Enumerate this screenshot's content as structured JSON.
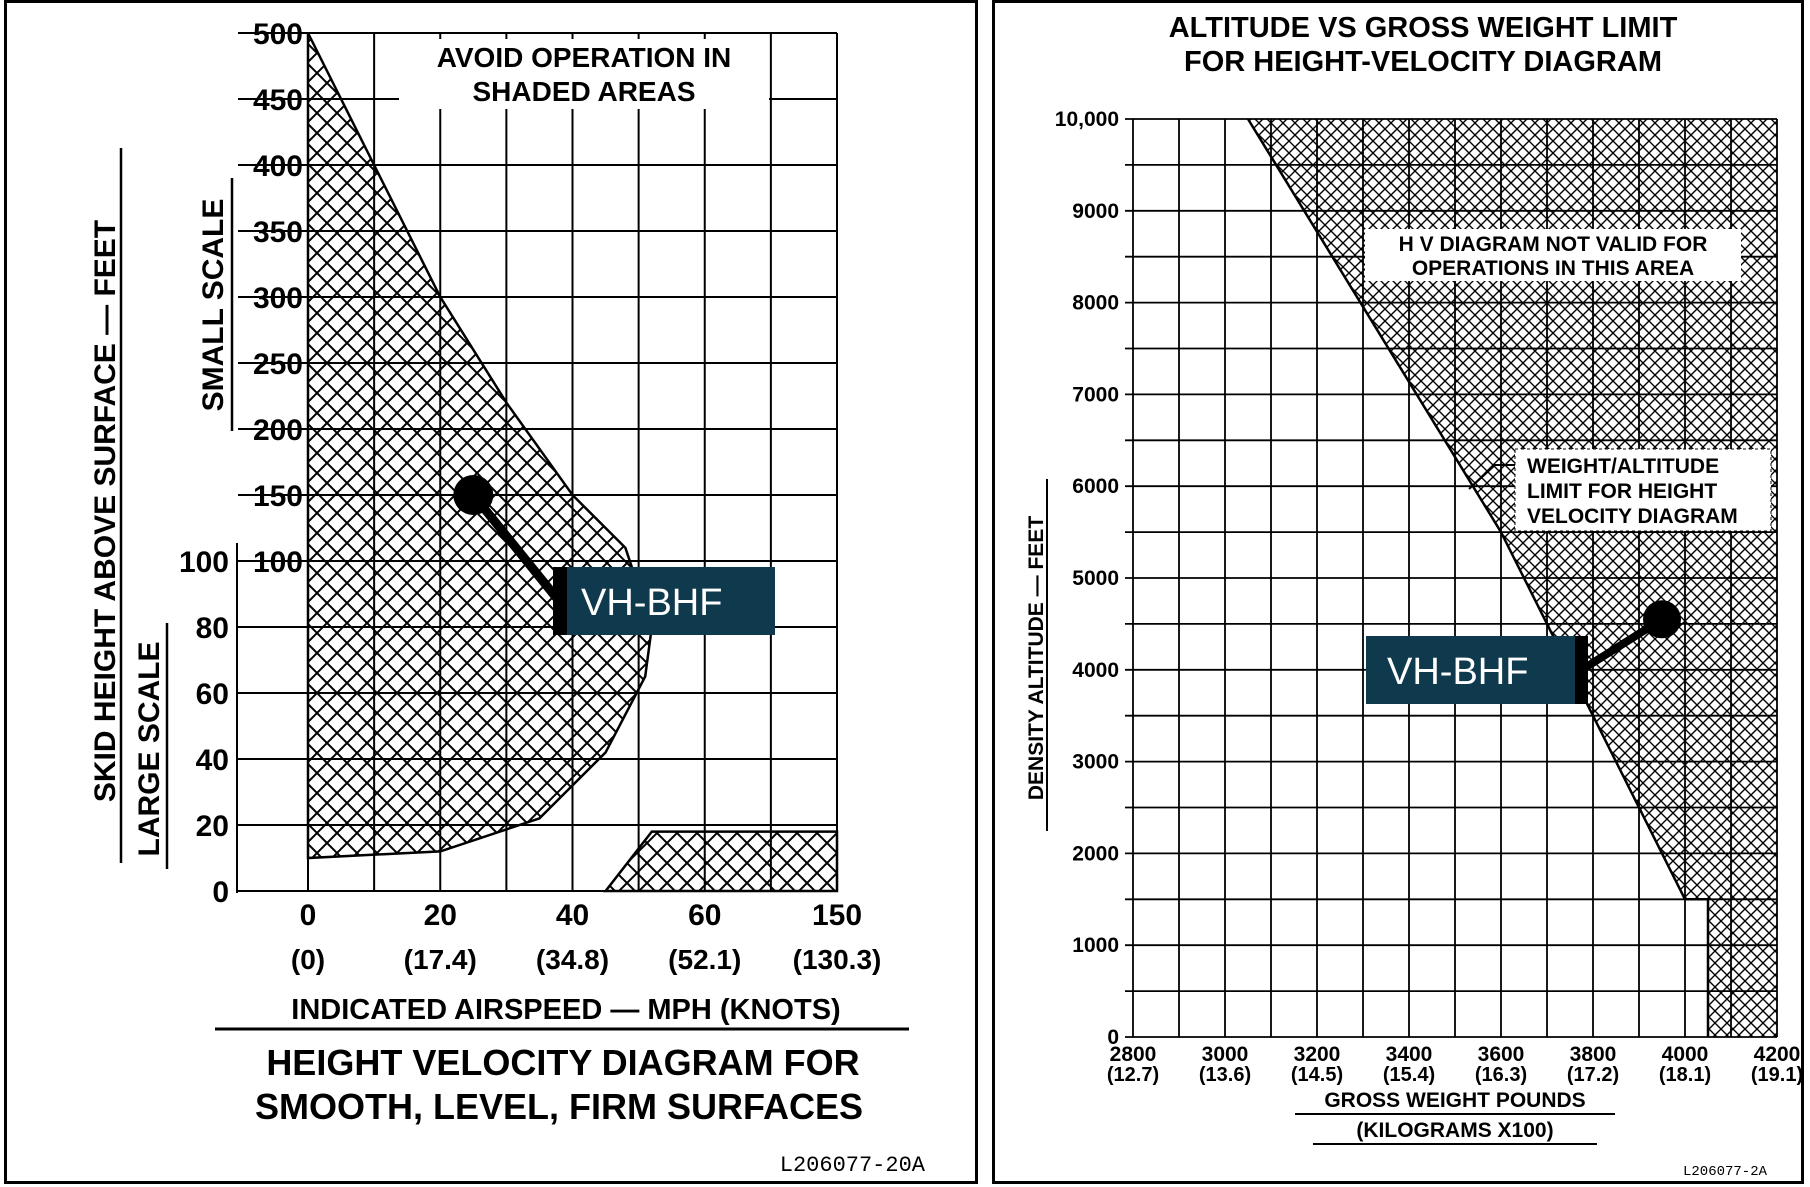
{
  "chart_data": [
    {
      "type": "area",
      "title": "HEIGHT VELOCITY DIAGRAM FOR SMOOTH, LEVEL, FIRM SURFACES",
      "title_lines": [
        "HEIGHT VELOCITY DIAGRAM FOR",
        "SMOOTH, LEVEL, FIRM SURFACES"
      ],
      "note_lines": [
        "AVOID OPERATION IN",
        "SHADED AREAS"
      ],
      "ylabel": "SKID HEIGHT ABOVE SURFACE — FEET",
      "small_scale_label": "SMALL SCALE",
      "large_scale_label": "LARGE SCALE",
      "xlabel": "INDICATED AIRSPEED — MPH (KNOTS)",
      "x_ticks": [
        "0",
        "20",
        "40",
        "60",
        "150"
      ],
      "x_ticks_knots": [
        "(0)",
        "(17.4)",
        "(34.8)",
        "(52.1)",
        "(130.3)"
      ],
      "small_scale_ticks": [
        "100",
        "150",
        "200",
        "250",
        "300",
        "350",
        "400",
        "450",
        "500"
      ],
      "large_scale_ticks": [
        "0",
        "20",
        "40",
        "60",
        "80",
        "100"
      ],
      "shaded_regions": [
        {
          "name": "upper avoid region (small scale)",
          "points": [
            [
              0,
              500
            ],
            [
              10,
              400
            ],
            [
              20,
              300
            ],
            [
              30,
              220
            ],
            [
              40,
              150
            ],
            [
              48,
              110
            ]
          ]
        },
        {
          "name": "lower avoid region (large scale)",
          "points": [
            [
              0,
              10
            ],
            [
              20,
              12
            ],
            [
              35,
              22
            ],
            [
              45,
              42
            ],
            [
              51,
              65
            ],
            [
              52,
              80
            ]
          ]
        },
        {
          "name": "high speed low height region",
          "points": [
            [
              45,
              0
            ],
            [
              52,
              18
            ],
            [
              150,
              18
            ],
            [
              150,
              0
            ]
          ]
        }
      ],
      "marker": {
        "label": "VH-BHF",
        "x_mph": 25,
        "height_ft": 150
      },
      "ref": "L206077-20A"
    },
    {
      "type": "area",
      "title": "ALTITUDE VS GROSS WEIGHT LIMIT FOR HEIGHT-VELOCITY DIAGRAM",
      "title_lines": [
        "ALTITUDE VS GROSS WEIGHT LIMIT",
        "FOR HEIGHT-VELOCITY DIAGRAM"
      ],
      "ylabel": "DENSITY ALTITUDE — FEET",
      "xlabel_lines": [
        "GROSS WEIGHT POUNDS",
        "(KILOGRAMS X100)"
      ],
      "x_ticks": [
        "2800",
        "3000",
        "3200",
        "3400",
        "3600",
        "3800",
        "4000",
        "4200"
      ],
      "x_ticks_kg": [
        "(12.7)",
        "(13.6)",
        "(14.5)",
        "(15.4)",
        "(16.3)",
        "(17.2)",
        "(18.1)",
        "(19.1)"
      ],
      "y_ticks": [
        "0",
        "1000",
        "2000",
        "3000",
        "4000",
        "5000",
        "6000",
        "7000",
        "8000",
        "9000",
        "10,000"
      ],
      "xlim": [
        2800,
        4200
      ],
      "ylim": [
        0,
        10000
      ],
      "limit_line": [
        [
          3050,
          10000
        ],
        [
          3600,
          5500
        ],
        [
          4000,
          1500
        ],
        [
          4050,
          1500
        ],
        [
          4050,
          0
        ]
      ],
      "shaded_note_lines": [
        "H V DIAGRAM NOT VALID FOR",
        "OPERATIONS IN THIS AREA"
      ],
      "limit_note_lines": [
        "WEIGHT/ALTITUDE",
        "LIMIT FOR HEIGHT",
        "VELOCITY DIAGRAM"
      ],
      "marker": {
        "label": "VH-BHF",
        "weight_lb": 3950,
        "altitude_ft": 4550
      },
      "ref": "L206077-2A"
    }
  ],
  "colors": {
    "marker_box": "#0f3a4d",
    "marker_text": "#ffffff",
    "ink": "#000000"
  }
}
